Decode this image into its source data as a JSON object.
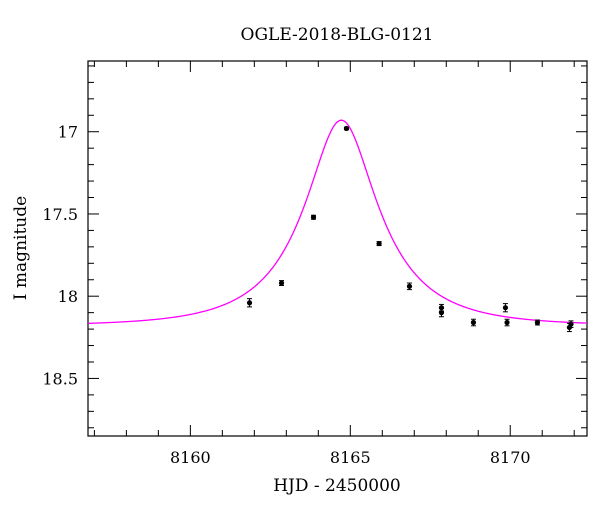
{
  "chart_data": {
    "type": "scatter",
    "title": "OGLE-2018-BLG-0121",
    "xlabel": "HJD - 2450000",
    "ylabel": "I magnitude",
    "xlim": [
      8156.8,
      8172.4
    ],
    "ylim": [
      18.85,
      16.57
    ],
    "y_inverted": true,
    "grid": false,
    "x_ticks": [
      8160,
      8165,
      8170
    ],
    "y_ticks": [
      17,
      17.5,
      18,
      18.5
    ],
    "x_tick_labels": [
      "8160",
      "8165",
      "8170"
    ],
    "y_tick_labels": [
      "17",
      "17.5",
      "18",
      "18.5"
    ],
    "model_color": "#ff00ff",
    "point_color": "#000000",
    "series": [
      {
        "type": "scatter",
        "points": [
          {
            "x": 8161.85,
            "y": 18.04,
            "err": 0.025
          },
          {
            "x": 8162.85,
            "y": 17.92,
            "err": 0.015
          },
          {
            "x": 8163.85,
            "y": 17.52,
            "err": 0.012
          },
          {
            "x": 8164.88,
            "y": 16.98,
            "err": 0.008
          },
          {
            "x": 8165.9,
            "y": 17.68,
            "err": 0.012
          },
          {
            "x": 8166.85,
            "y": 17.94,
            "err": 0.02
          },
          {
            "x": 8167.85,
            "y": 18.07,
            "err": 0.02
          },
          {
            "x": 8167.85,
            "y": 18.1,
            "err": 0.025
          },
          {
            "x": 8168.85,
            "y": 18.16,
            "err": 0.02
          },
          {
            "x": 8169.85,
            "y": 18.07,
            "err": 0.025
          },
          {
            "x": 8169.9,
            "y": 18.16,
            "err": 0.02
          },
          {
            "x": 8170.85,
            "y": 18.16,
            "err": 0.015
          },
          {
            "x": 8171.85,
            "y": 18.19,
            "err": 0.025
          },
          {
            "x": 8171.9,
            "y": 18.17,
            "err": 0.02
          }
        ]
      },
      {
        "type": "line",
        "model": "point-lens",
        "params": {
          "t0": 8164.72,
          "u0": 0.43,
          "tE": 2.7,
          "I_source": 18.22,
          "I_baseline": 18.18,
          "I_peak": 16.93
        }
      }
    ]
  }
}
